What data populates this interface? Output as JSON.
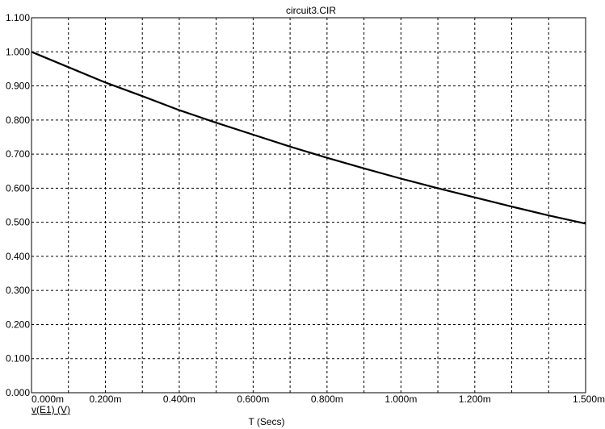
{
  "chart_data": {
    "type": "line",
    "title": "circuit3.CIR",
    "xlabel": "T (Secs)",
    "ylabel": "",
    "xlim": [
      0,
      1.5
    ],
    "ylim": [
      0,
      1.1
    ],
    "grid": true,
    "y_tick_labels": [
      "0.000",
      "0.100",
      "0.200",
      "0.300",
      "0.400",
      "0.500",
      "0.600",
      "0.700",
      "0.800",
      "0.900",
      "1.000",
      "1.100"
    ],
    "x_ticks": [
      {
        "value": 0.0,
        "label": "0.000m"
      },
      {
        "value": 0.2,
        "label": "0.200m"
      },
      {
        "value": 0.4,
        "label": "0.400m"
      },
      {
        "value": 0.6,
        "label": "0.600m"
      },
      {
        "value": 0.8,
        "label": "0.800m"
      },
      {
        "value": 1.0,
        "label": "1.000m"
      },
      {
        "value": 1.2,
        "label": "1.200m"
      },
      {
        "value": 1.5,
        "label": "1.500m"
      }
    ],
    "x_grid_values": [
      0.1,
      0.2,
      0.3,
      0.4,
      0.5,
      0.6,
      0.7,
      0.8,
      0.9,
      1.0,
      1.1,
      1.2,
      1.3,
      1.4
    ],
    "series": [
      {
        "name": "v(E1) (V)",
        "color": "#000000",
        "x": [
          0.0,
          0.1,
          0.2,
          0.3,
          0.4,
          0.5,
          0.6,
          0.7,
          0.8,
          0.9,
          1.0,
          1.1,
          1.2,
          1.3,
          1.4,
          1.5
        ],
        "y": [
          1.0,
          0.955,
          0.91,
          0.87,
          0.829,
          0.792,
          0.757,
          0.722,
          0.689,
          0.658,
          0.628,
          0.6,
          0.573,
          0.546,
          0.52,
          0.496
        ]
      }
    ]
  }
}
